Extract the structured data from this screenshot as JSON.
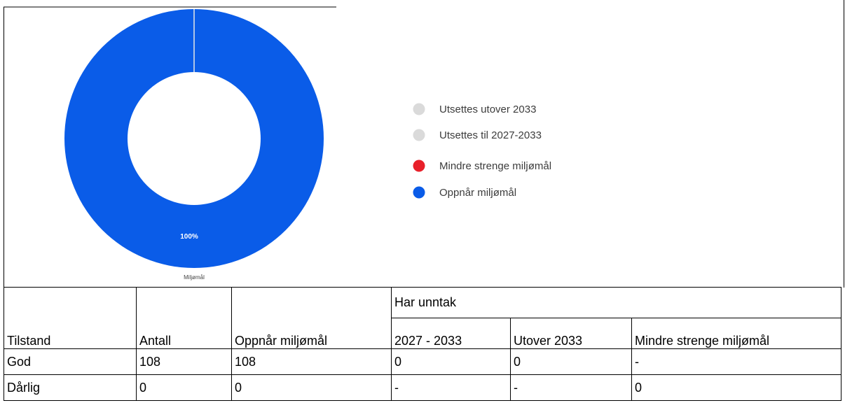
{
  "chart_data": {
    "type": "donut",
    "title": "Miljømål",
    "categories": [
      "Utsettes utover 2033",
      "Utsettes til 2027-2033",
      "Mindre strenge miljømål",
      "Oppnår miljømål"
    ],
    "values": [
      0,
      0,
      0,
      100
    ],
    "value_labels": [
      null,
      null,
      null,
      "100%"
    ],
    "colors": [
      "#dadada",
      "#dadada",
      "#e8202a",
      "#0a5ce8"
    ]
  },
  "table": {
    "header": [
      "Tilstand",
      "Antall",
      "Oppnår miljømål",
      "Har unntak"
    ],
    "subheader": [
      "2027 - 2033",
      "Utover 2033",
      "Mindre strenge miljømål"
    ],
    "rows": [
      [
        "God",
        108,
        108,
        0,
        0,
        "-"
      ],
      [
        "Dårlig",
        0,
        0,
        "-",
        "-",
        0
      ]
    ]
  }
}
